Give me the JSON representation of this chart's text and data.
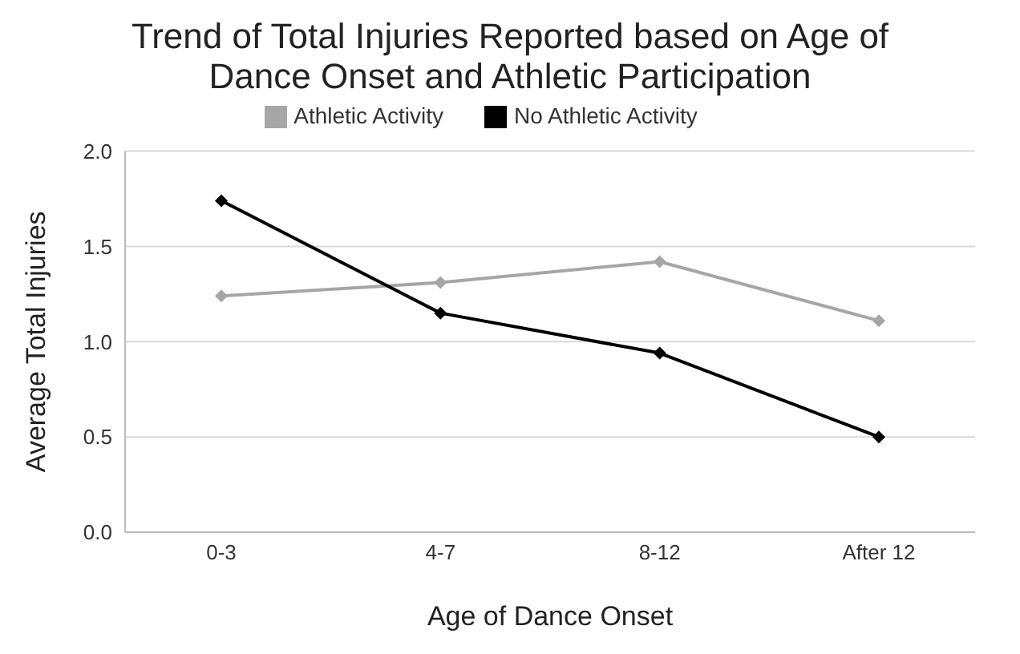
{
  "chart_data": {
    "type": "line",
    "title": "Trend of Total Injuries Reported based on Age of Dance Onset and Athletic Participation",
    "xlabel": "Age of Dance Onset",
    "ylabel": "Average Total Injuries",
    "categories": [
      "0-3",
      "4-7",
      "8-12",
      "After 12"
    ],
    "series": [
      {
        "name": "Athletic Activity",
        "color": "#a6a6a6",
        "values": [
          1.24,
          1.31,
          1.42,
          1.11
        ]
      },
      {
        "name": "No Athletic Activity",
        "color": "#000000",
        "values": [
          1.74,
          1.15,
          0.94,
          0.5
        ]
      }
    ],
    "ylim": [
      0,
      2
    ],
    "yticks": [
      {
        "value": 0,
        "label": "0.0"
      },
      {
        "value": 0.5,
        "label": "0.5"
      },
      {
        "value": 1,
        "label": "1.0"
      },
      {
        "value": 1.5,
        "label": "1.5"
      },
      {
        "value": 2,
        "label": "2.0"
      }
    ],
    "grid": "y",
    "legend": "top",
    "marker": "diamond",
    "line_style": "solid"
  }
}
